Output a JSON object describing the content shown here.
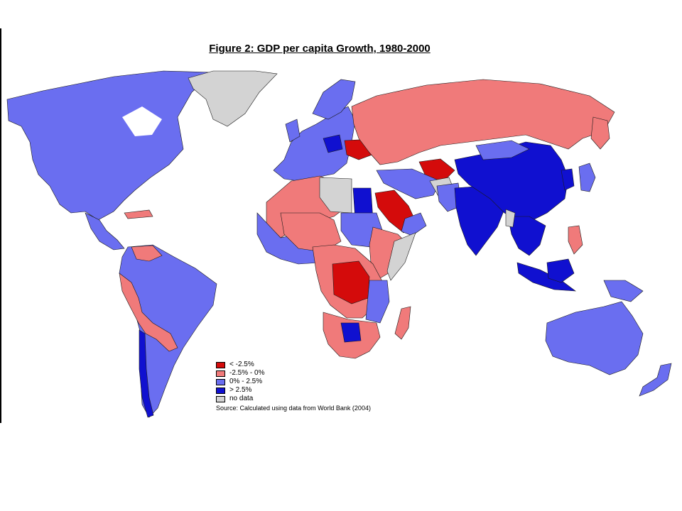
{
  "title": "Figure 2: GDP per capita Growth, 1980-2000",
  "colors": {
    "lt_neg25": "#d40b0b",
    "neg25_0": "#f07a7a",
    "0_25": "#6a6ef0",
    "gt25": "#1010d0",
    "nodata": "#d3d3d3",
    "ocean": "#ffffff"
  },
  "legend": {
    "items": [
      {
        "key": "lt_neg25",
        "label": "< -2.5%"
      },
      {
        "key": "neg25_0",
        "label": "-2.5% - 0%"
      },
      {
        "key": "0_25",
        "label": "0% - 2.5%"
      },
      {
        "key": "gt25",
        "label": "> 2.5%"
      },
      {
        "key": "nodata",
        "label": "no data"
      }
    ],
    "source": "Source: Calculated using data from World Bank (2004)"
  }
}
